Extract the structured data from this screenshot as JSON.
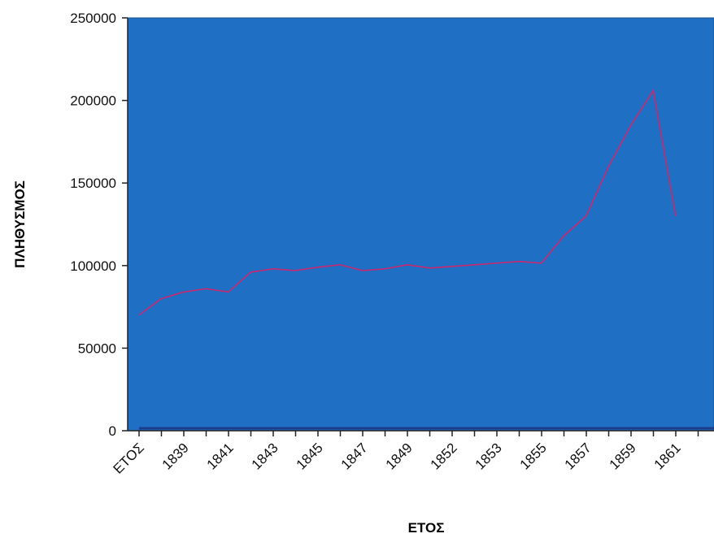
{
  "chart_data": {
    "type": "line",
    "xlabel": "ΕΤΟΣ",
    "ylabel": "ΠΛΗΘΥΣΜΟΣ",
    "ylim": [
      0,
      250000
    ],
    "yticks": [
      "0",
      "50000",
      "100000",
      "150000",
      "200000",
      "250000"
    ],
    "grid": false,
    "legend": "none",
    "categories": [
      "ΕΤΟΣ",
      "",
      "1839",
      "",
      "1841",
      "",
      "1843",
      "",
      "1845",
      "",
      "1847",
      "",
      "1849",
      "",
      "1852",
      "",
      "1853",
      "",
      "1855",
      "",
      "1857",
      "",
      "1859",
      "",
      "1861",
      ""
    ],
    "series": [
      {
        "color": "#c8286e",
        "values": [
          70000,
          80000,
          84000,
          86000,
          84000,
          96000,
          98000,
          97000,
          99000,
          100500,
          97000,
          98000,
          100500,
          98500,
          99500,
          100500,
          101500,
          102500,
          101500,
          118000,
          130000,
          160000,
          185000,
          206000,
          130000,
          null
        ]
      }
    ],
    "baseline_series_color": "#1e3c8c"
  },
  "colors": {
    "plot_background": "#1f6fc4",
    "plot_border": "#1a4f94",
    "axis": "#222222"
  }
}
